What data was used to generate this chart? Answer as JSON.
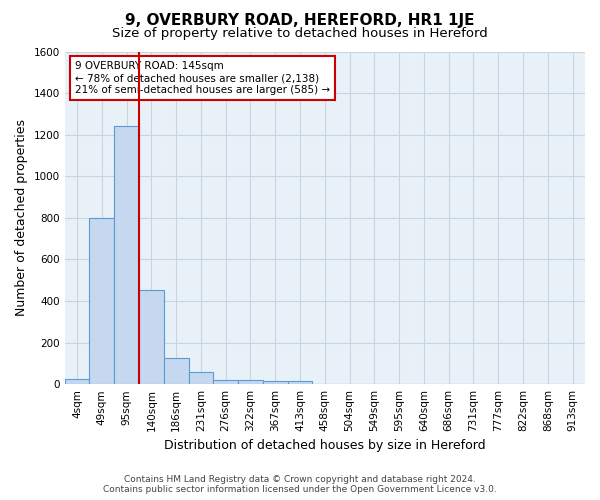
{
  "title": "9, OVERBURY ROAD, HEREFORD, HR1 1JE",
  "subtitle": "Size of property relative to detached houses in Hereford",
  "xlabel": "Distribution of detached houses by size in Hereford",
  "ylabel": "Number of detached properties",
  "categories": [
    "4sqm",
    "49sqm",
    "95sqm",
    "140sqm",
    "186sqm",
    "231sqm",
    "276sqm",
    "322sqm",
    "367sqm",
    "413sqm",
    "458sqm",
    "504sqm",
    "549sqm",
    "595sqm",
    "640sqm",
    "686sqm",
    "731sqm",
    "777sqm",
    "822sqm",
    "868sqm",
    "913sqm"
  ],
  "values": [
    25,
    800,
    1240,
    455,
    125,
    60,
    20,
    20,
    15,
    15,
    0,
    0,
    0,
    0,
    0,
    0,
    0,
    0,
    0,
    0,
    0
  ],
  "bar_color": "#c5d8f0",
  "bar_edge_color": "#5b9bd5",
  "vline_position": 2.5,
  "vline_color": "#cc0000",
  "ylim": [
    0,
    1600
  ],
  "yticks": [
    0,
    200,
    400,
    600,
    800,
    1000,
    1200,
    1400,
    1600
  ],
  "annotation_title": "9 OVERBURY ROAD: 145sqm",
  "annotation_line1": "← 78% of detached houses are smaller (2,138)",
  "annotation_line2": "21% of semi-detached houses are larger (585) →",
  "bg_color": "#dce9f5",
  "plot_bg_color": "#e8f0f8",
  "grid_color": "#c8d4e0",
  "fig_bg_color": "#ffffff",
  "footer_line1": "Contains HM Land Registry data © Crown copyright and database right 2024.",
  "footer_line2": "Contains public sector information licensed under the Open Government Licence v3.0.",
  "title_fontsize": 11,
  "subtitle_fontsize": 9.5,
  "tick_fontsize": 7.5,
  "label_fontsize": 9,
  "ylabel_full": "Number of detached properties"
}
